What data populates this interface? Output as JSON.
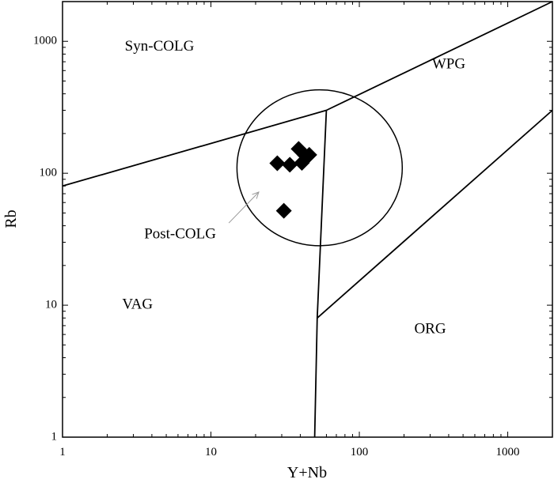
{
  "chart_data": {
    "type": "scatter",
    "title": "",
    "xlabel": "Y+Nb",
    "ylabel": "Rb",
    "xscale": "log",
    "yscale": "log",
    "xlim": [
      1,
      2000
    ],
    "ylim": [
      1,
      2000
    ],
    "grid": false,
    "x_ticks": [
      1,
      10,
      100,
      1000
    ],
    "y_ticks": [
      1,
      10,
      100,
      1000
    ],
    "x_tick_labels": [
      "1",
      "10",
      "100",
      "1000"
    ],
    "y_tick_labels": [
      "1",
      "10",
      "100",
      "1000"
    ],
    "marker": "filled-diamond",
    "series": [
      {
        "points": [
          {
            "x": 28,
            "y": 119
          },
          {
            "x": 34,
            "y": 116
          },
          {
            "x": 39,
            "y": 153
          },
          {
            "x": 41,
            "y": 120
          },
          {
            "x": 43,
            "y": 137
          },
          {
            "x": 46,
            "y": 138
          },
          {
            "x": 31,
            "y": 52
          }
        ]
      }
    ],
    "boundaries": [
      {
        "points": [
          [
            1,
            80
          ],
          [
            60,
            300
          ]
        ]
      },
      {
        "points": [
          [
            60,
            300
          ],
          [
            2000,
            2000
          ]
        ]
      },
      {
        "points": [
          [
            60,
            300
          ],
          [
            52,
            8
          ],
          [
            50,
            1
          ]
        ]
      },
      {
        "points": [
          [
            52,
            8
          ],
          [
            2000,
            300
          ]
        ]
      }
    ],
    "field_ellipse": {
      "center": [
        54,
        110
      ],
      "x_range": [
        15,
        195
      ],
      "y_range": [
        28,
        425
      ]
    },
    "field_labels": [
      {
        "text": "Syn-COLG",
        "x": 4.5,
        "y": 900
      },
      {
        "text": "WPG",
        "x": 400,
        "y": 660
      },
      {
        "text": "Post-COLG",
        "x": 6.2,
        "y": 34
      },
      {
        "text": "VAG",
        "x": 3.2,
        "y": 10
      },
      {
        "text": "ORG",
        "x": 300,
        "y": 6.5
      }
    ],
    "post_colg_arrow": {
      "from": [
        13.2,
        42
      ],
      "to": [
        21,
        72
      ]
    }
  }
}
